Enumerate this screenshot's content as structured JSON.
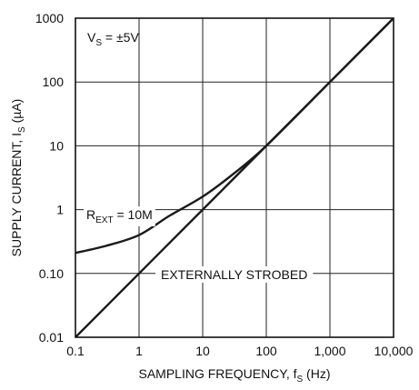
{
  "chart_data": {
    "type": "line",
    "title": "",
    "xlabel": "SAMPLING FREQUENCY, f",
    "xlabel_sub": "S",
    "xlabel_unit": " (Hz)",
    "ylabel": "SUPPLY CURRENT, I",
    "ylabel_sub": "S",
    "ylabel_unit": " (µA)",
    "x_scale": "log",
    "y_scale": "log",
    "xlim": [
      0.1,
      10000
    ],
    "ylim": [
      0.01,
      1000
    ],
    "grid": true,
    "x_ticks": [
      0.1,
      1,
      10,
      100,
      1000,
      10000
    ],
    "x_tick_labels": [
      "0.1",
      "1",
      "10",
      "100",
      "1,000",
      "10,000"
    ],
    "y_ticks": [
      0.01,
      0.1,
      1,
      10,
      100,
      1000
    ],
    "y_tick_labels": [
      "0.01",
      "0.10",
      "1",
      "10",
      "100",
      "1000"
    ],
    "series": [
      {
        "name": "EXTERNALLY STROBED",
        "x": [
          0.1,
          1,
          10,
          100,
          1000,
          10000
        ],
        "y": [
          0.01,
          0.1,
          1,
          10,
          100,
          1000
        ]
      },
      {
        "name": "R_EXT = 10M",
        "x": [
          0.1,
          0.3,
          1,
          3,
          10,
          30,
          100,
          1000,
          10000
        ],
        "y": [
          0.21,
          0.27,
          0.4,
          0.8,
          1.6,
          3.6,
          10,
          100,
          1000
        ]
      }
    ],
    "annotations": {
      "vs_main": "V",
      "vs_sub": "S",
      "vs_rest": " = ±5V",
      "rext_main": "R",
      "rext_sub": "EXT",
      "rext_rest": " = 10M",
      "strobed": "EXTERNALLY STROBED"
    }
  }
}
